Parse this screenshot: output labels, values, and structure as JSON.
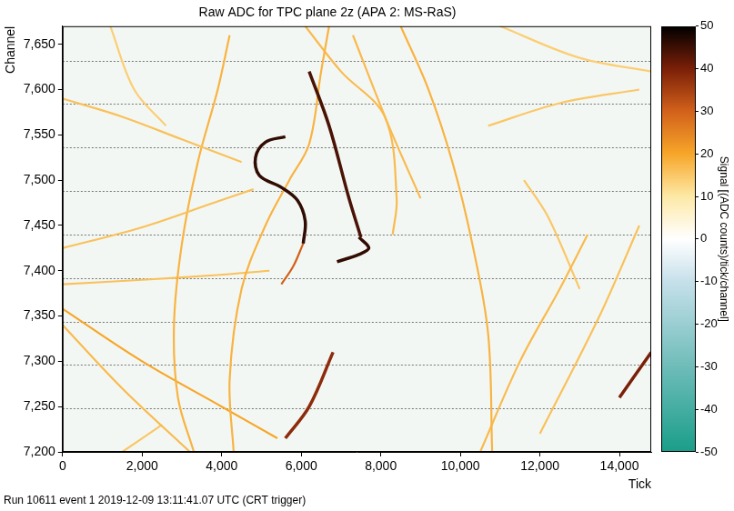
{
  "chart_data": {
    "type": "line",
    "title": "Raw ADC for TPC plane 2z (APA 2: MS-RaS)",
    "x_label": "Tick",
    "y_label": "Channel",
    "footer": "Run 10611 event 1 2019-12-09 13:11:41.07 UTC (CRT trigger)",
    "xlim": [
      0,
      14800
    ],
    "xticks": [
      0,
      2000,
      4000,
      6000,
      8000,
      10000,
      12000,
      14000
    ],
    "ylim": [
      7200,
      7670
    ],
    "yticks": [
      7200,
      7250,
      7300,
      7350,
      7400,
      7450,
      7500,
      7550,
      7600,
      7650
    ],
    "grid": false,
    "channel_boundaries": [
      7248,
      7296,
      7344,
      7392,
      7440,
      7488,
      7536,
      7584,
      7632
    ],
    "colorbar": {
      "label": "Signal [(ADC counts)/tick/channel]",
      "range": [
        -50,
        50
      ],
      "ticks": [
        -50,
        -40,
        -30,
        -20,
        -10,
        0,
        10,
        20,
        30,
        40,
        50
      ]
    },
    "series": [
      {
        "signal": 16,
        "x": [
          0,
          1500,
          3000,
          4500
        ],
        "y": [
          7590,
          7570,
          7545,
          7520
        ]
      },
      {
        "signal": 16,
        "x": [
          0,
          2000,
          3800,
          4800
        ],
        "y": [
          7425,
          7448,
          7475,
          7490
        ]
      },
      {
        "signal": 46,
        "x": [
          5600,
          5100,
          4850,
          4950,
          5500,
          5900,
          6100,
          6050
        ],
        "y": [
          7548,
          7542,
          7525,
          7505,
          7492,
          7478,
          7455,
          7430
        ]
      },
      {
        "signal": 30,
        "x": [
          6050,
          5800,
          5500
        ],
        "y": [
          7430,
          7405,
          7385
        ]
      },
      {
        "signal": 44,
        "x": [
          6200,
          6700,
          7200,
          7500
        ],
        "y": [
          7620,
          7560,
          7480,
          7437
        ]
      },
      {
        "signal": 46,
        "x": [
          7450,
          7700,
          7450,
          6900
        ],
        "y": [
          7437,
          7425,
          7418,
          7410
        ]
      },
      {
        "signal": 18,
        "x": [
          4200,
          3900,
          3400,
          3000,
          2800,
          2900,
          3300
        ],
        "y": [
          7660,
          7600,
          7520,
          7430,
          7340,
          7260,
          7200
        ]
      },
      {
        "signal": 18,
        "x": [
          4300,
          4200,
          4500,
          5100,
          5700,
          6200,
          6500,
          6700
        ],
        "y": [
          7200,
          7280,
          7380,
          7450,
          7500,
          7540,
          7620,
          7670
        ]
      },
      {
        "signal": 17,
        "x": [
          6100,
          7000,
          8100,
          8400,
          8300
        ],
        "y": [
          7670,
          7620,
          7570,
          7480,
          7440
        ]
      },
      {
        "signal": 18,
        "x": [
          8500,
          9200,
          9800,
          10300,
          10700,
          10800
        ],
        "y": [
          7670,
          7600,
          7520,
          7430,
          7330,
          7200
        ]
      },
      {
        "signal": 15,
        "x": [
          10700,
          12500,
          14500
        ],
        "y": [
          7560,
          7585,
          7600
        ]
      },
      {
        "signal": 14,
        "x": [
          11000,
          13000,
          14800
        ],
        "y": [
          7670,
          7635,
          7620
        ]
      },
      {
        "signal": 17,
        "x": [
          10500,
          11500,
          12500,
          13200
        ],
        "y": [
          7200,
          7300,
          7380,
          7440
        ]
      },
      {
        "signal": 16,
        "x": [
          12000,
          13500,
          14500
        ],
        "y": [
          7220,
          7350,
          7450
        ]
      },
      {
        "signal": 40,
        "x": [
          14000,
          14800
        ],
        "y": [
          7260,
          7310
        ]
      },
      {
        "signal": 15,
        "x": [
          11600,
          12200,
          13000
        ],
        "y": [
          7500,
          7460,
          7380
        ]
      },
      {
        "signal": 20,
        "x": [
          0,
          2000,
          4000,
          5400
        ],
        "y": [
          7358,
          7300,
          7250,
          7215
        ]
      },
      {
        "signal": 17,
        "x": [
          0,
          1500,
          3200
        ],
        "y": [
          7340,
          7270,
          7200
        ]
      },
      {
        "signal": 16,
        "x": [
          0,
          2000,
          3800,
          5200
        ],
        "y": [
          7385,
          7390,
          7395,
          7400
        ]
      },
      {
        "signal": 38,
        "x": [
          5600,
          6200,
          6800
        ],
        "y": [
          7215,
          7250,
          7310
        ]
      },
      {
        "signal": 15,
        "x": [
          1500,
          2500
        ],
        "y": [
          7200,
          7230
        ]
      },
      {
        "signal": 17,
        "x": [
          7300,
          8200,
          9000
        ],
        "y": [
          7660,
          7560,
          7480
        ]
      },
      {
        "signal": 14,
        "x": [
          1200,
          1800,
          2600
        ],
        "y": [
          7670,
          7600,
          7560
        ]
      }
    ]
  }
}
